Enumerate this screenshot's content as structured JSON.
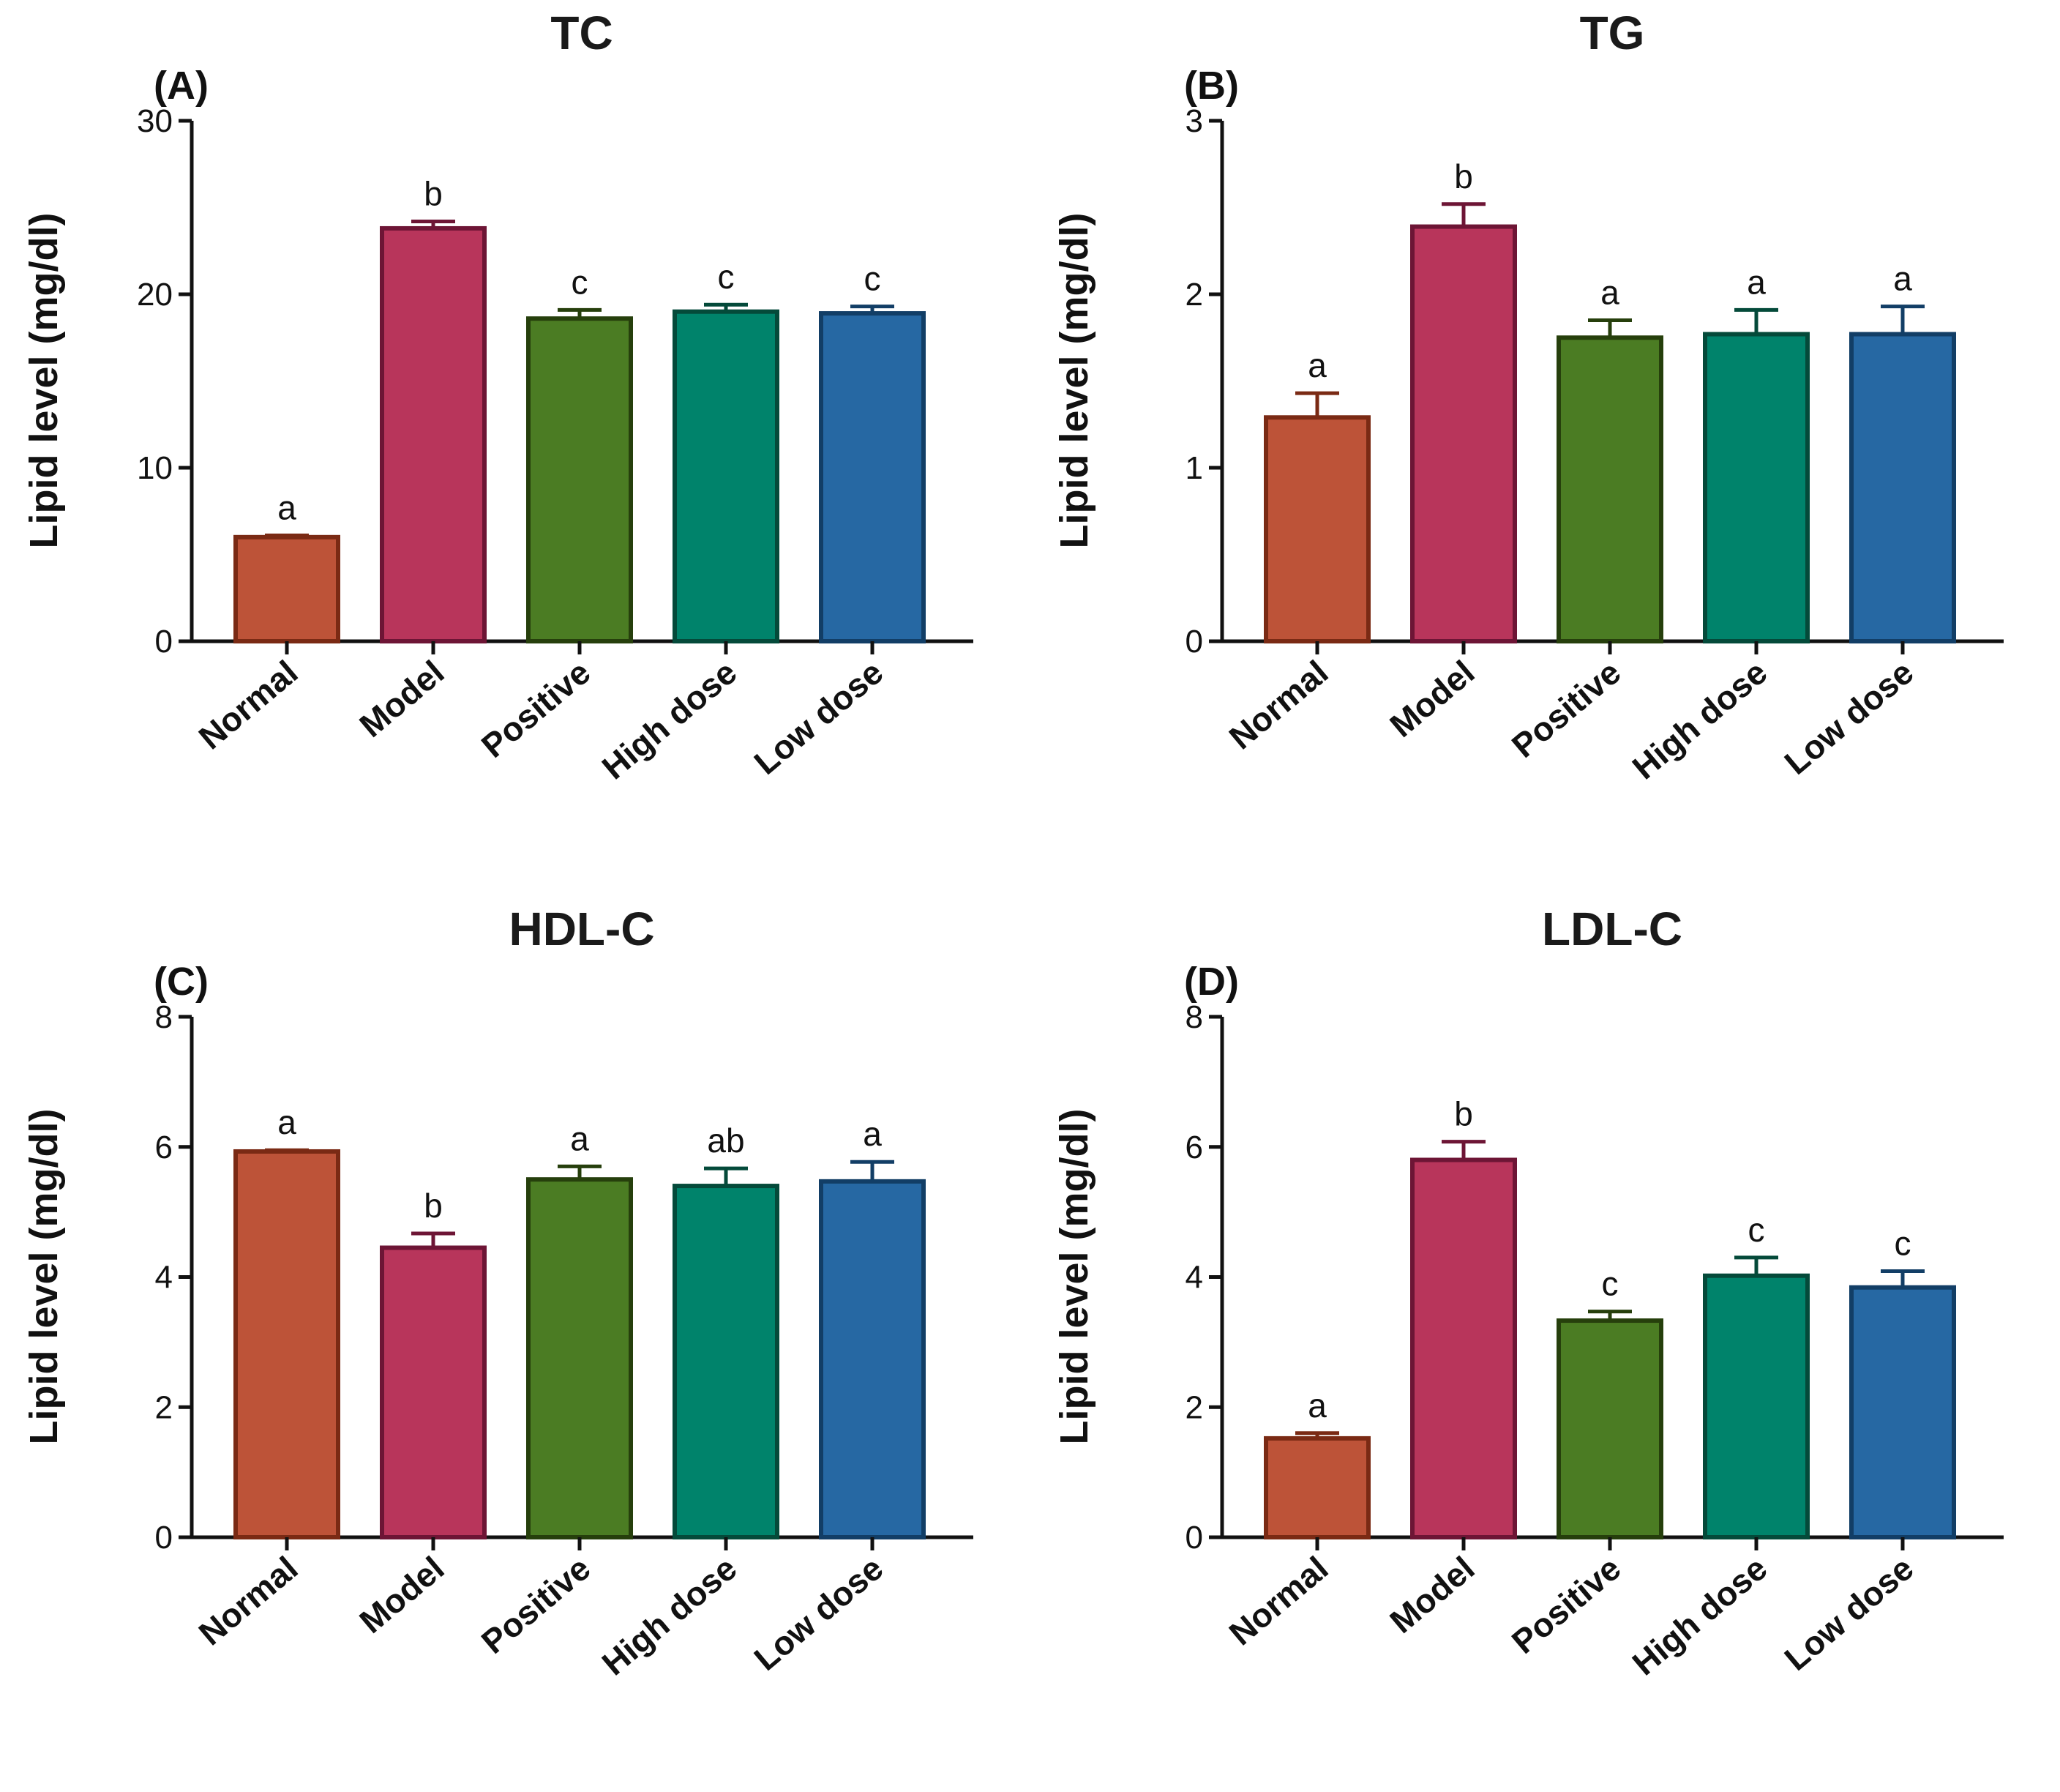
{
  "chart_data": [
    {
      "type": "bar",
      "panel_label": "(A)",
      "title": "TC",
      "ylabel": "Lipid level   (mg/dl)",
      "categories": [
        "Normal",
        "Model",
        "Positive",
        "High dose",
        "Low dose"
      ],
      "values": [
        6.0,
        23.8,
        18.6,
        19.0,
        18.9
      ],
      "errors": [
        0.1,
        0.4,
        0.5,
        0.4,
        0.4
      ],
      "significance": [
        "a",
        "b",
        "c",
        "c",
        "c"
      ],
      "ylim": [
        0,
        30
      ],
      "yticks": [
        0,
        10,
        20,
        30
      ]
    },
    {
      "type": "bar",
      "panel_label": "(B)",
      "title": "TG",
      "ylabel": "Lipid level   (mg/dl)",
      "categories": [
        "Normal",
        "Model",
        "Positive",
        "High dose",
        "Low dose"
      ],
      "values": [
        1.29,
        2.39,
        1.75,
        1.77,
        1.77
      ],
      "errors": [
        0.14,
        0.13,
        0.1,
        0.14,
        0.16
      ],
      "significance": [
        "a",
        "b",
        "a",
        "a",
        "a"
      ],
      "ylim": [
        0,
        3
      ],
      "yticks": [
        0,
        1,
        2,
        3
      ]
    },
    {
      "type": "bar",
      "panel_label": "(C)",
      "title": "HDL-C",
      "ylabel": "Lipid level  (mg/dl)",
      "categories": [
        "Normal",
        "Model",
        "Positive",
        "High dose",
        "Low dose"
      ],
      "values": [
        5.93,
        4.45,
        5.5,
        5.4,
        5.47
      ],
      "errors": [
        0.02,
        0.22,
        0.2,
        0.27,
        0.3
      ],
      "significance": [
        "a",
        "b",
        "a",
        "ab",
        "a"
      ],
      "ylim": [
        0,
        8
      ],
      "yticks": [
        0,
        2,
        4,
        6,
        8
      ]
    },
    {
      "type": "bar",
      "panel_label": "(D)",
      "title": "LDL-C",
      "ylabel": "Lipid level  (mg/dl)",
      "categories": [
        "Normal",
        "Model",
        "Positive",
        "High dose",
        "Low dose"
      ],
      "values": [
        1.52,
        5.8,
        3.33,
        4.02,
        3.84
      ],
      "errors": [
        0.08,
        0.28,
        0.14,
        0.28,
        0.25
      ],
      "significance": [
        "a",
        "b",
        "c",
        "c",
        "c"
      ],
      "ylim": [
        0,
        8
      ],
      "yticks": [
        0,
        2,
        4,
        6,
        8
      ]
    }
  ],
  "colors": {
    "fills": [
      "#bd5338",
      "#b8355b",
      "#4b7c23",
      "#00836b",
      "#2668a3"
    ],
    "borders": [
      "#7a2a14",
      "#6d1535",
      "#263f0c",
      "#044a3a",
      "#123e66"
    ]
  }
}
